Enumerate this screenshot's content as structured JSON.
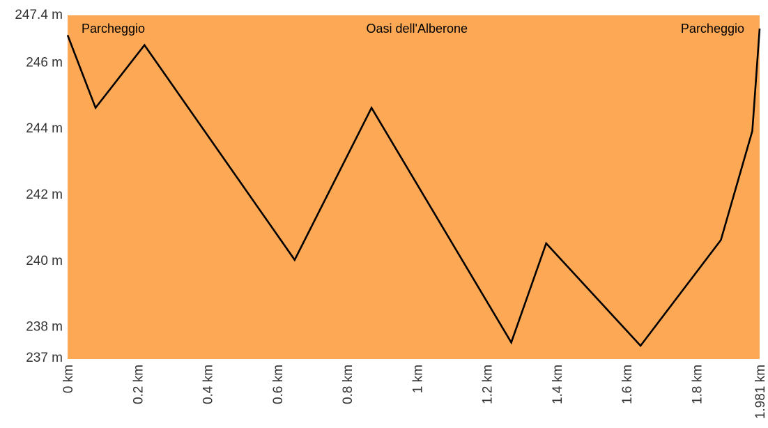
{
  "chart_data": {
    "type": "area",
    "title": "",
    "xlabel": "",
    "ylabel": "",
    "unit_x": "km",
    "unit_y": "m",
    "xlim": [
      0,
      1.981
    ],
    "ylim": [
      237,
      247.4
    ],
    "grid": false,
    "fill_color": "#FDA855",
    "line_color": "#000000",
    "x_ticks": [
      "0 km",
      "0.2 km",
      "0.4 km",
      "0.6 km",
      "0.8 km",
      "1 km",
      "1.2 km",
      "1.4 km",
      "1.6 km",
      "1.8 km",
      "1.981 km"
    ],
    "x_tick_values": [
      0,
      0.2,
      0.4,
      0.6,
      0.8,
      1.0,
      1.2,
      1.4,
      1.6,
      1.8,
      1.981
    ],
    "y_ticks": [
      "237 m",
      "238 m",
      "240 m",
      "242 m",
      "244 m",
      "246 m",
      "247.4 m"
    ],
    "y_tick_values": [
      237,
      238,
      240,
      242,
      244,
      246,
      247.4
    ],
    "series": [
      {
        "x": [
          0,
          0.08,
          0.22,
          0.65,
          0.87,
          1.27,
          1.37,
          1.64,
          1.87,
          1.96,
          1.981
        ],
        "y": [
          246.8,
          244.6,
          246.5,
          240.0,
          244.6,
          237.5,
          240.5,
          237.4,
          240.6,
          243.9,
          247.0
        ]
      }
    ],
    "annotations": [
      {
        "text": "Parcheggio",
        "x": 0,
        "anchor": "start"
      },
      {
        "text": "Oasi dell'Alberone",
        "x": 1.0,
        "anchor": "middle"
      },
      {
        "text": "Parcheggio",
        "x": 1.981,
        "anchor": "end"
      }
    ]
  }
}
